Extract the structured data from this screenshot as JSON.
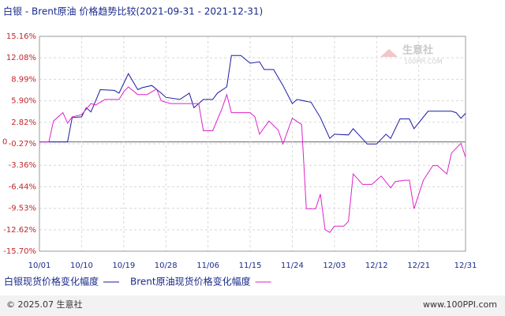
{
  "chart_data": {
    "type": "line",
    "title": "白银 - Brent原油 价格趋势比较(2021-09-31 - 2021-12-31)",
    "xlim": [
      "10/01",
      "12/31"
    ],
    "xticks": [
      "10/01",
      "10/10",
      "10/19",
      "10/28",
      "11/06",
      "11/15",
      "11/24",
      "12/03",
      "12/12",
      "12/21",
      "12/31"
    ],
    "ylim": [
      -15.7,
      15.16
    ],
    "yticks": [
      {
        "value": -15.7,
        "label": "-15.70%"
      },
      {
        "value": -12.62,
        "label": "-12.62%"
      },
      {
        "value": -9.53,
        "label": "-9.53%"
      },
      {
        "value": -6.44,
        "label": "-6.44%"
      },
      {
        "value": -3.36,
        "label": "-3.36%"
      },
      {
        "value": -0.27,
        "label": "-0.27%"
      },
      {
        "value": 0,
        "label": "0"
      },
      {
        "value": 2.82,
        "label": "2.82%"
      },
      {
        "value": 5.9,
        "label": "5.90%"
      },
      {
        "value": 8.99,
        "label": "8.99%"
      },
      {
        "value": 12.08,
        "label": "12.08%"
      },
      {
        "value": 15.16,
        "label": "15.16%"
      }
    ],
    "grid": true,
    "series": [
      {
        "name": "白银现货价格变化幅度",
        "color": "#1a1aa6",
        "x": [
          "10/01",
          "10/07",
          "10/08",
          "10/10",
          "10/11",
          "10/12",
          "10/14",
          "10/17",
          "10/18",
          "10/20",
          "10/22",
          "10/23",
          "10/25",
          "10/27",
          "10/28",
          "10/31",
          "11/02",
          "11/03",
          "11/05",
          "11/07",
          "11/08",
          "11/10",
          "11/11",
          "11/13",
          "11/15",
          "11/17",
          "11/18",
          "11/20",
          "11/22",
          "11/24",
          "11/25",
          "11/28",
          "11/30",
          "12/02",
          "12/03",
          "12/06",
          "12/07",
          "12/10",
          "12/12",
          "12/14",
          "12/15",
          "12/17",
          "12/19",
          "12/20",
          "12/23",
          "12/25",
          "12/28",
          "12/29",
          "12/30",
          "12/31"
        ],
        "values": [
          0,
          0,
          3.5,
          3.6,
          4.9,
          4.3,
          7.5,
          7.4,
          7.0,
          9.8,
          7.5,
          7.8,
          8.1,
          7.0,
          6.4,
          6.1,
          7.0,
          4.9,
          6.1,
          6.1,
          7.0,
          7.9,
          12.4,
          12.4,
          11.3,
          11.5,
          10.4,
          10.4,
          8.1,
          5.5,
          6.1,
          5.7,
          3.5,
          0.5,
          1.1,
          1.0,
          1.9,
          -0.3,
          -0.3,
          1.1,
          0.5,
          3.3,
          3.3,
          1.9,
          4.4,
          4.4,
          4.4,
          4.2,
          3.4,
          4.1
        ]
      },
      {
        "name": "Brent原油现货价格变化幅度",
        "color": "#dd22cc",
        "x": [
          "10/01",
          "10/03",
          "10/04",
          "10/06",
          "10/07",
          "10/08",
          "10/10",
          "10/12",
          "10/13",
          "10/15",
          "10/18",
          "10/19",
          "10/20",
          "10/22",
          "10/24",
          "10/26",
          "10/27",
          "10/29",
          "11/02",
          "11/04",
          "11/05",
          "11/07",
          "11/09",
          "11/10",
          "11/11",
          "11/13",
          "11/15",
          "11/16",
          "11/17",
          "11/19",
          "11/21",
          "11/22",
          "11/24",
          "11/26",
          "11/27",
          "11/29",
          "11/30",
          "12/01",
          "12/02",
          "12/03",
          "12/05",
          "12/06",
          "12/07",
          "12/09",
          "12/11",
          "12/13",
          "12/15",
          "12/16",
          "12/18",
          "12/19",
          "12/20",
          "12/22",
          "12/24",
          "12/25",
          "12/27",
          "12/28",
          "12/30",
          "12/31"
        ],
        "values": [
          0,
          0,
          3.0,
          4.2,
          2.7,
          3.6,
          3.9,
          5.5,
          5.3,
          6.1,
          6.1,
          7.2,
          7.9,
          6.8,
          6.8,
          7.6,
          5.9,
          5.5,
          5.5,
          5.5,
          1.6,
          1.6,
          4.8,
          6.8,
          4.2,
          4.2,
          4.2,
          3.6,
          1.1,
          3.0,
          1.7,
          -0.3,
          3.4,
          2.5,
          -9.6,
          -9.6,
          -7.5,
          -12.6,
          -13.0,
          -12.1,
          -12.1,
          -11.4,
          -4.6,
          -6.1,
          -6.1,
          -4.9,
          -6.6,
          -5.7,
          -5.5,
          -5.5,
          -9.6,
          -5.5,
          -3.4,
          -3.4,
          -4.6,
          -1.6,
          -0.2,
          -2.2
        ]
      }
    ],
    "watermark": "生意社",
    "watermark_url": "100PPI.COM",
    "footer_left": "© 2025.07 生意社",
    "footer_right": "www.100PPI.com"
  }
}
